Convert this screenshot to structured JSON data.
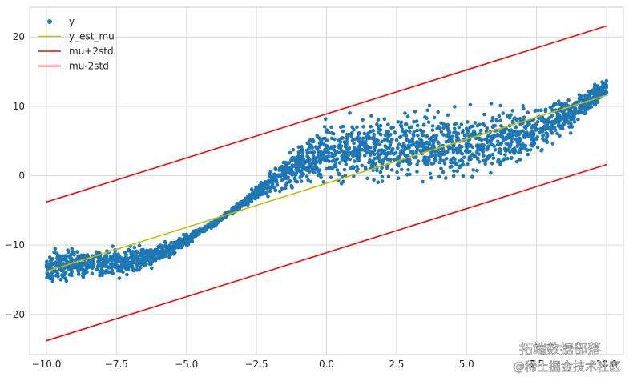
{
  "chart_data": {
    "type": "scatter",
    "title": "",
    "xlabel": "",
    "ylabel": "",
    "xlim": [
      -10.6,
      10.6
    ],
    "ylim": [
      -25.8,
      24.3
    ],
    "x_ticks": [
      -10.0,
      -7.5,
      -5.0,
      -2.5,
      0.0,
      2.5,
      5.0,
      7.5,
      10.0
    ],
    "x_tick_labels": [
      "−10.0",
      "−7.5",
      "−5.0",
      "−2.5",
      "0.0",
      "2.5",
      "5.0",
      "7.5",
      "10.0"
    ],
    "y_ticks": [
      -20,
      -10,
      0,
      10,
      20
    ],
    "y_tick_labels": [
      "−20",
      "−10",
      "0",
      "10",
      "20"
    ],
    "grid": true,
    "legend_position": "top-left",
    "series": [
      {
        "name": "y",
        "kind": "scatter",
        "color": "#1f77b4",
        "x": [
          -10.0,
          -9.0,
          -8.0,
          -7.0,
          -6.0,
          -5.0,
          -4.5,
          -4.0,
          -3.5,
          -3.0,
          -2.5,
          -2.0,
          -1.5,
          -1.0,
          -0.5,
          0.0,
          1.0,
          2.0,
          3.0,
          4.0,
          5.0,
          6.0,
          7.0,
          8.0,
          9.0,
          10.0
        ],
        "y_center": [
          -13.0,
          -12.8,
          -12.6,
          -12.3,
          -11.4,
          -9.3,
          -8.0,
          -6.8,
          -5.4,
          -4.0,
          -2.5,
          -0.9,
          0.5,
          1.6,
          2.5,
          3.2,
          3.9,
          4.2,
          4.3,
          4.3,
          4.4,
          5.0,
          6.0,
          7.6,
          9.8,
          12.8
        ],
        "y_spread": [
          3.8,
          3.8,
          3.7,
          3.4,
          2.4,
          1.4,
          0.9,
          0.7,
          0.7,
          1.1,
          1.8,
          3.0,
          4.2,
          5.2,
          6.2,
          7.2,
          7.8,
          8.0,
          8.2,
          8.2,
          8.0,
          7.6,
          6.6,
          5.2,
          3.6,
          2.2
        ]
      },
      {
        "name": "y_est_mu",
        "kind": "line",
        "color": "#bfbf00",
        "x": [
          -10.0,
          10.0
        ],
        "y": [
          -13.8,
          11.6
        ]
      },
      {
        "name": "mu+2std",
        "kind": "line",
        "color": "#ff0000",
        "x": [
          -10.0,
          10.0
        ],
        "y": [
          -3.8,
          21.6
        ]
      },
      {
        "name": "mu-2std",
        "kind": "line",
        "color": "#ff0000",
        "x": [
          -10.0,
          10.0
        ],
        "y": [
          -23.8,
          1.6
        ]
      }
    ]
  },
  "watermark": {
    "line1": "拓端数据部落",
    "line2": "@稀土掘金技术社区"
  }
}
